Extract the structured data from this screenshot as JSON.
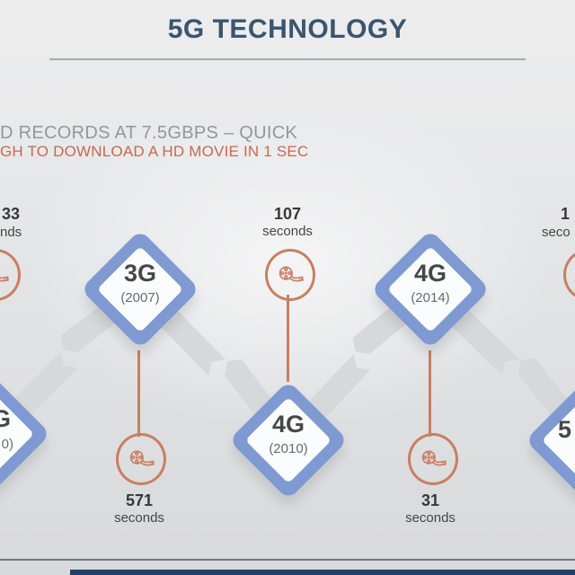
{
  "slide": {
    "title": "5G TECHNOLOGY",
    "headline_gray": "D RECORDS AT 7.5GBPS – QUICK",
    "headline_orange": "GH TO DOWNLOAD A HD MOVIE IN 1 SEC"
  },
  "colors": {
    "title_blue": "#3a556e",
    "accent_blue": "#7f9ad2",
    "accent_orange": "#c97e62",
    "headline_gray": "#8f989f",
    "headline_orange": "#c6694f",
    "ribbon_gray": "#d7d8d9",
    "footer_navy": "#20406a"
  },
  "timeline": {
    "icon": "film-reel-icon",
    "nodes": [
      {
        "id": "left-partial",
        "label_fragment": "G",
        "year_fragment": "0)",
        "time_number": "33",
        "time_unit_fragment": "nds",
        "label_position": "top"
      },
      {
        "id": "3g",
        "label": "3G",
        "year": "(2007)",
        "time_number": "571",
        "time_unit": "seconds",
        "label_position": "bottom"
      },
      {
        "id": "4g-2010",
        "label": "4G",
        "year": "(2010)",
        "time_number": "107",
        "time_unit": "seconds",
        "label_position": "top"
      },
      {
        "id": "4g-2014",
        "label": "4G",
        "year": "(2014)",
        "time_number": "31",
        "time_unit": "seconds",
        "label_position": "bottom"
      },
      {
        "id": "5g-partial",
        "label_fragment": "5",
        "time_number": "1",
        "time_unit_fragment": "seco",
        "label_position": "top"
      }
    ]
  }
}
